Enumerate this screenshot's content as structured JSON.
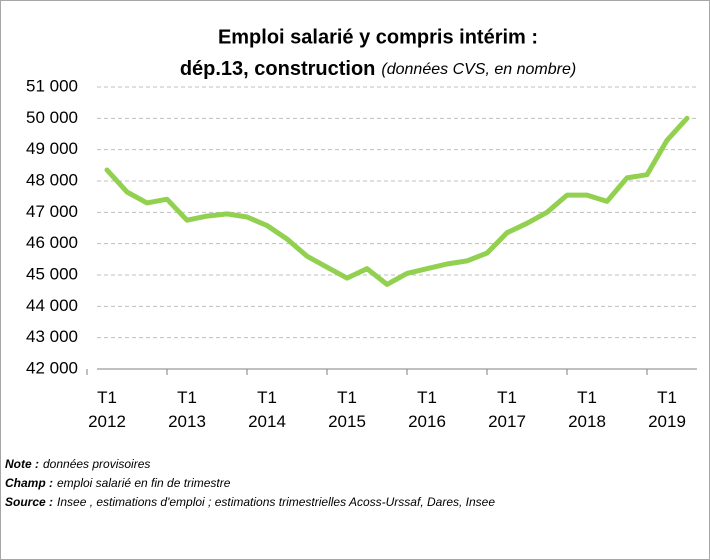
{
  "chart_data": {
    "type": "line",
    "title": "Emploi salarié y compris intérim :",
    "title_line2": "dép.13, construction",
    "subtitle": "(données CVS, en nombre)",
    "categories": [
      "T1 2012",
      null,
      null,
      null,
      "T1 2013",
      null,
      null,
      null,
      "T1 2014",
      null,
      null,
      null,
      "T1 2015",
      null,
      null,
      null,
      "T1 2016",
      null,
      null,
      null,
      "T1 2017",
      null,
      null,
      null,
      "T1 2018",
      null,
      null,
      null,
      "T1 2019",
      null
    ],
    "series": [
      {
        "name": "Emploi salarié",
        "color": "#92d050",
        "values": [
          48350,
          47650,
          47300,
          47420,
          46750,
          46880,
          46950,
          46850,
          46580,
          46150,
          45600,
          45250,
          44900,
          45200,
          44700,
          45050,
          45200,
          45350,
          45450,
          45700,
          46350,
          46650,
          47000,
          47550,
          47550,
          47350,
          48100,
          48200,
          49300,
          50000
        ]
      }
    ],
    "ylim": [
      42000,
      51000
    ],
    "yticks": [
      {
        "value": 42000,
        "label": "42 000"
      },
      {
        "value": 43000,
        "label": "43 000"
      },
      {
        "value": 44000,
        "label": "44 000"
      },
      {
        "value": 45000,
        "label": "45 000"
      },
      {
        "value": 46000,
        "label": "46 000"
      },
      {
        "value": 47000,
        "label": "47 000"
      },
      {
        "value": 48000,
        "label": "48 000"
      },
      {
        "value": 49000,
        "label": "49 000"
      },
      {
        "value": 50000,
        "label": "50 000"
      },
      {
        "value": 51000,
        "label": "51 000"
      }
    ],
    "grid": true,
    "notes": [
      {
        "label": "Note :",
        "text": "données provisoires"
      },
      {
        "label": "Champ :",
        "text": "emploi salarié en fin de trimestre"
      },
      {
        "label": "Source :",
        "text": "Insee , estimations d'emploi ; estimations trimestrielles Acoss-Urssaf, Dares, Insee"
      }
    ]
  }
}
